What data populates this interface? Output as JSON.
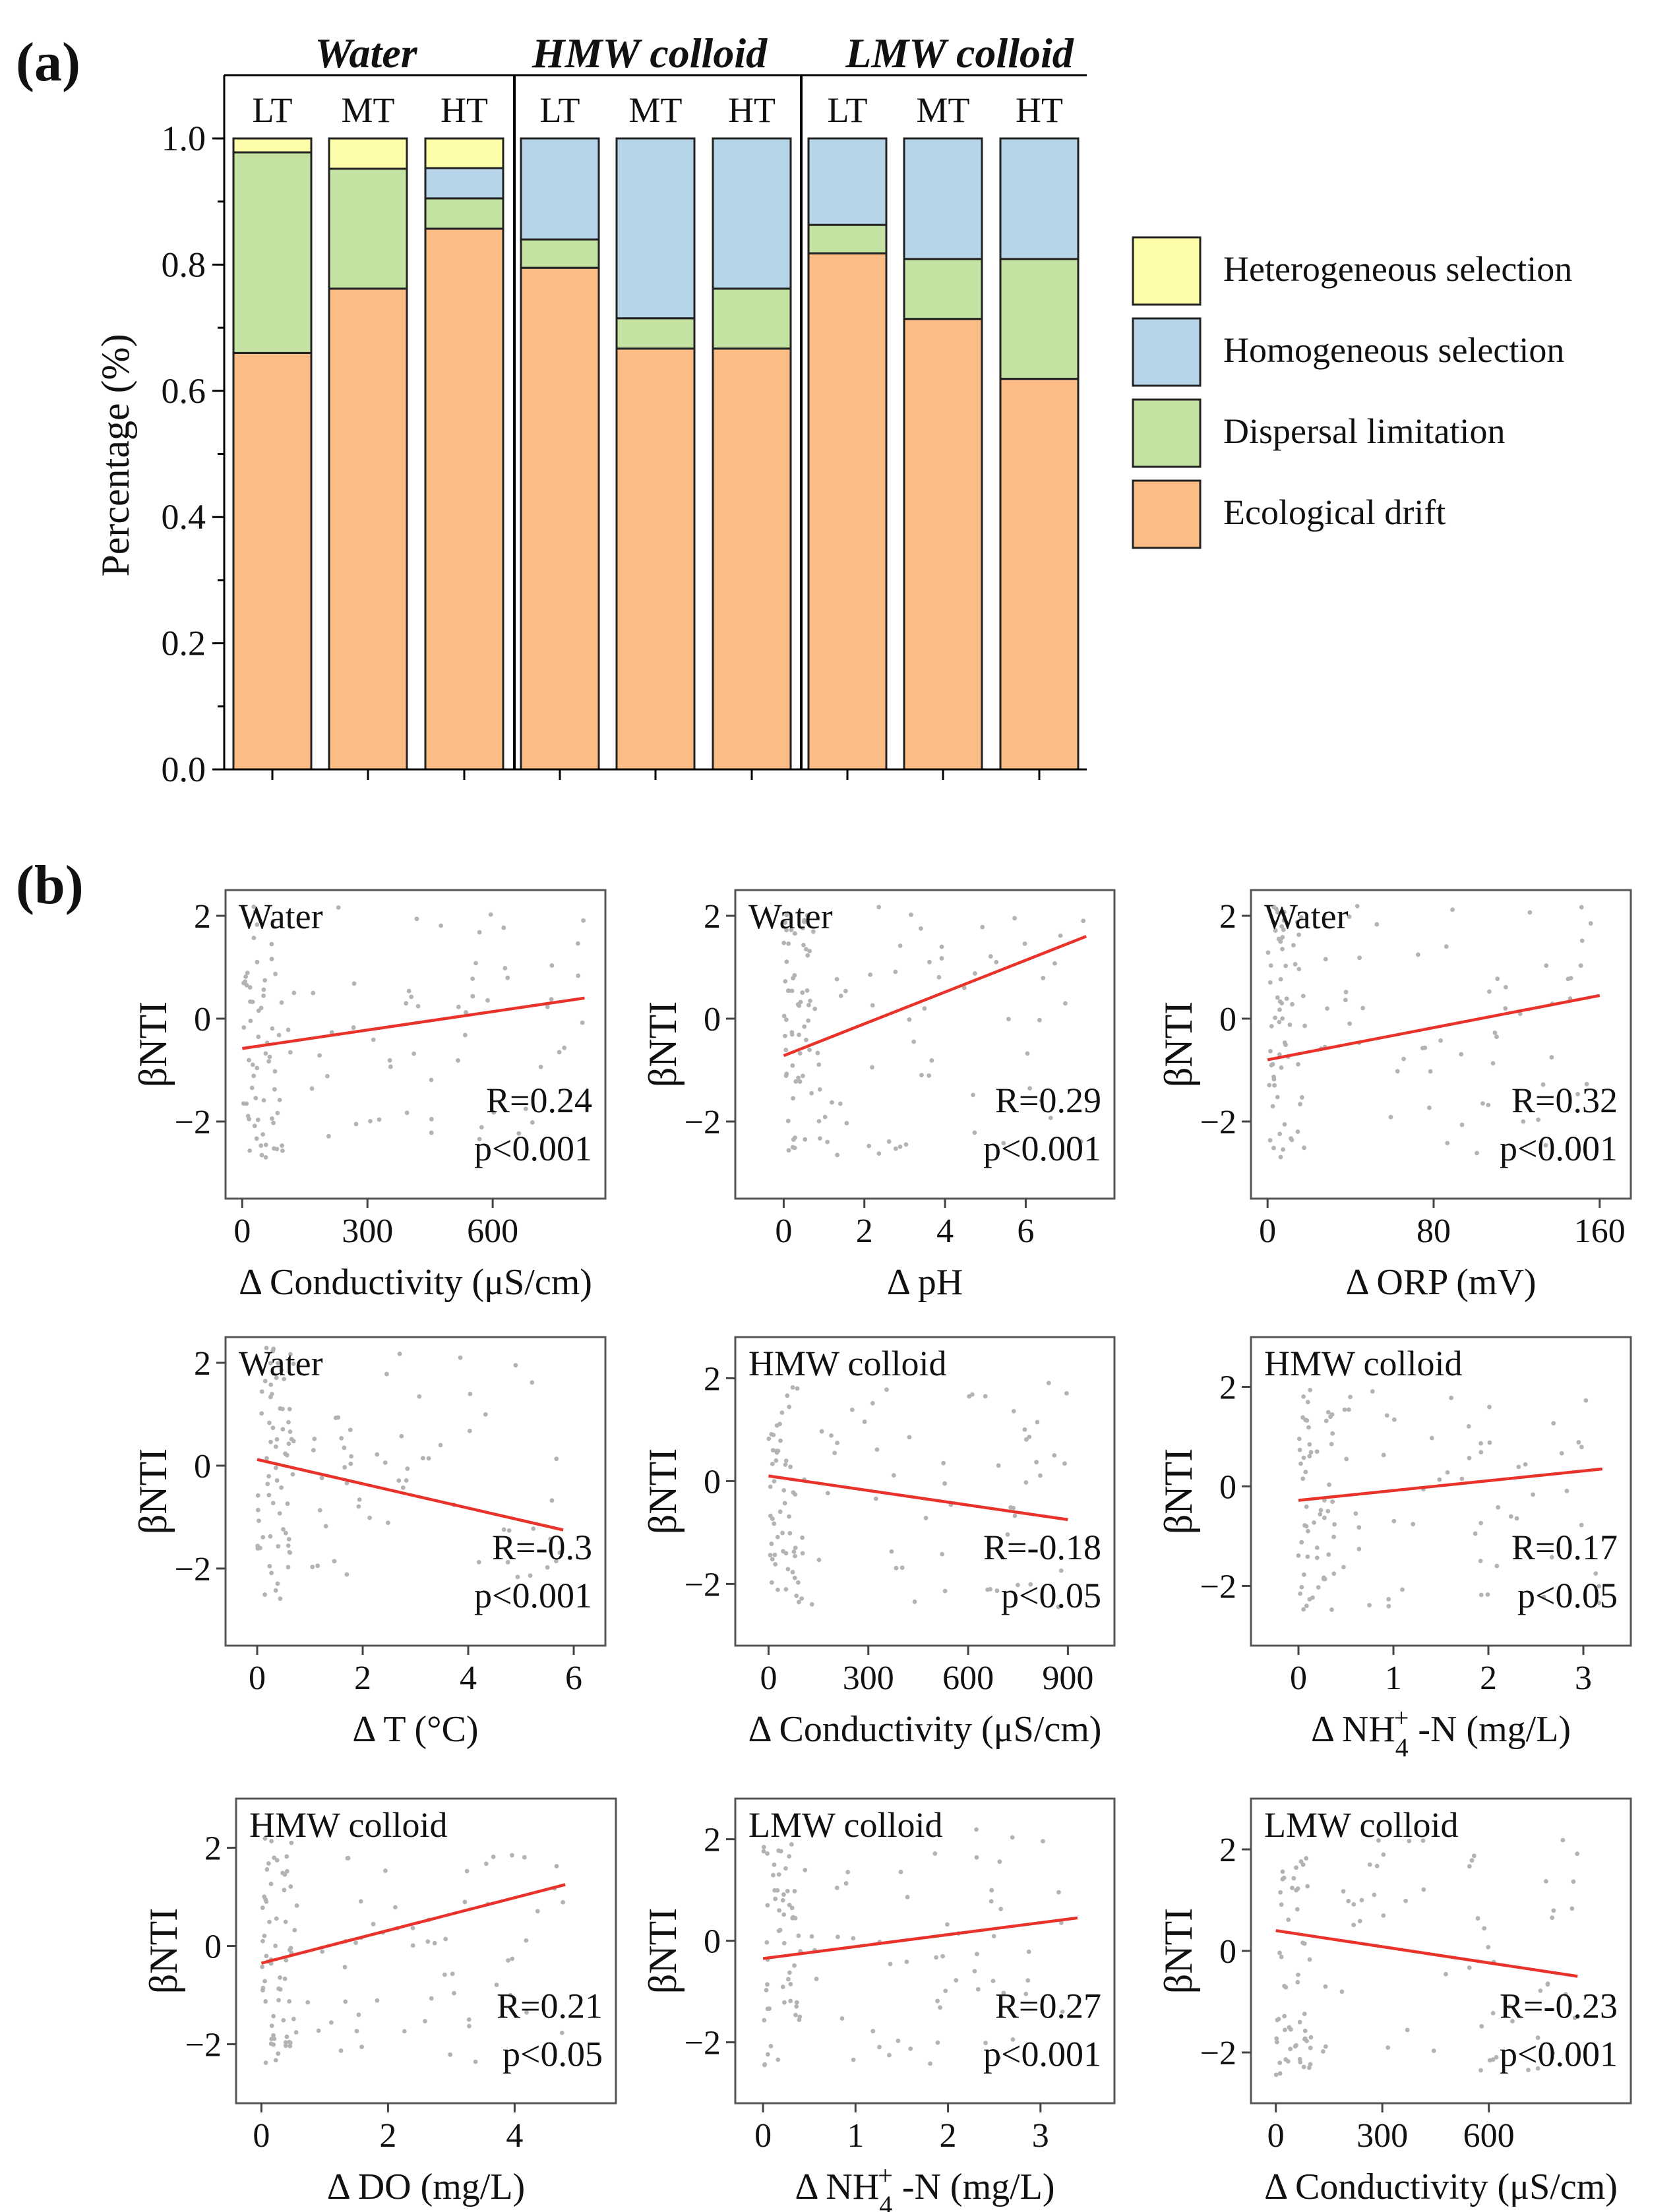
{
  "panel_labels": {
    "a": "(a)",
    "b": "(b)"
  },
  "chart_data": [
    {
      "type": "bar",
      "stacked": true,
      "groups": [
        "Water",
        "HMW colloid",
        "LMW colloid"
      ],
      "categories": [
        "LT",
        "MT",
        "HT",
        "LT",
        "MT",
        "HT",
        "LT",
        "MT",
        "HT"
      ],
      "ylabel": "Percentage (%)",
      "ylim": [
        0,
        1.0
      ],
      "yticks": [
        "0.0",
        "0.2",
        "0.4",
        "0.6",
        "0.8",
        "1.0"
      ],
      "legend_position": "right",
      "series": [
        {
          "name": "Ecological drift",
          "color": "#FBBD85",
          "values": [
            0.66,
            0.762,
            0.857,
            0.795,
            0.667,
            0.667,
            0.818,
            0.714,
            0.619
          ]
        },
        {
          "name": "Dispersal limitation",
          "color": "#C4E3A3",
          "values": [
            0.318,
            0.19,
            0.048,
            0.045,
            0.048,
            0.095,
            0.045,
            0.095,
            0.19
          ]
        },
        {
          "name": "Homogeneous selection",
          "color": "#B6D5E8",
          "values": [
            0,
            0,
            0.048,
            0.16,
            0.285,
            0.238,
            0.137,
            0.191,
            0.191
          ]
        },
        {
          "name": "Heterogeneous selection",
          "color": "#FDFDAA",
          "values": [
            0.022,
            0.048,
            0.047,
            0,
            0,
            0,
            0,
            0,
            0
          ]
        }
      ]
    },
    {
      "type": "scatter",
      "panels": [
        {
          "label": "Water",
          "xlabel": "Δ Conductivity (μS/cm)",
          "ylabel": "βNTI",
          "xlim": [
            -40,
            870
          ],
          "ylim": [
            -3.5,
            2.5
          ],
          "xticks": [
            0,
            300,
            600
          ],
          "yticks": [
            -2,
            0,
            2
          ],
          "fit": [
            [
              0,
              -0.58
            ],
            [
              820,
              0.4
            ]
          ],
          "R": "R=0.24",
          "p": "p<0.001",
          "scatter_x": [
            0,
            820
          ],
          "scatter_y": [
            -2.7,
            2.2
          ],
          "n": 120,
          "seed": 11
        },
        {
          "label": "Water",
          "xlabel": "Δ pH",
          "ylabel": "βNTI",
          "xlim": [
            -1.2,
            8.2
          ],
          "ylim": [
            -3.5,
            2.5
          ],
          "xticks": [
            0,
            2,
            4,
            6
          ],
          "yticks": [
            -2,
            0,
            2
          ],
          "fit": [
            [
              0,
              -0.72
            ],
            [
              7.5,
              1.6
            ]
          ],
          "R": "R=0.29",
          "p": "p<0.001",
          "scatter_x": [
            0,
            7.5
          ],
          "scatter_y": [
            -2.7,
            2.2
          ],
          "n": 120,
          "seed": 23
        },
        {
          "label": "Water",
          "xlabel": "Δ ORP (mV)",
          "ylabel": "βNTI",
          "xlim": [
            -8,
            175
          ],
          "ylim": [
            -3.5,
            2.5
          ],
          "xticks": [
            0,
            80,
            160
          ],
          "yticks": [
            -2,
            0,
            2
          ],
          "fit": [
            [
              0,
              -0.8
            ],
            [
              160,
              0.45
            ]
          ],
          "R": "R=0.32",
          "p": "p<0.001",
          "scatter_x": [
            0,
            160
          ],
          "scatter_y": [
            -2.7,
            2.2
          ],
          "n": 120,
          "seed": 37
        },
        {
          "label": "Water",
          "xlabel": "Δ T (°C)",
          "ylabel": "βNTI",
          "xlim": [
            -0.6,
            6.6
          ],
          "ylim": [
            -3.5,
            2.5
          ],
          "xticks": [
            0,
            2,
            4,
            6
          ],
          "yticks": [
            -2,
            0,
            2
          ],
          "fit": [
            [
              0,
              0.12
            ],
            [
              5.8,
              -1.25
            ]
          ],
          "R": "R=-0.3",
          "p": "p<0.001",
          "scatter_x": [
            0,
            5.8
          ],
          "scatter_y": [
            -2.6,
            2.3
          ],
          "n": 120,
          "seed": 41
        },
        {
          "label": "HMW colloid",
          "xlabel": "Δ Conductivity (μS/cm)",
          "ylabel": "βNTI",
          "xlim": [
            -100,
            1040
          ],
          "ylim": [
            -3.2,
            2.8
          ],
          "xticks": [
            0,
            300,
            600,
            900
          ],
          "yticks": [
            -2,
            0,
            2
          ],
          "fit": [
            [
              0,
              0.1
            ],
            [
              900,
              -0.75
            ]
          ],
          "R": "R=-0.18",
          "p": "p<0.05",
          "scatter_x": [
            0,
            900
          ],
          "scatter_y": [
            -2.5,
            2.0
          ],
          "n": 110,
          "seed": 53
        },
        {
          "label": "HMW colloid",
          "xlabel": "Δ NH4+ -N (mg/L)",
          "ylabel": "βNTI",
          "xlim": [
            -0.5,
            3.5
          ],
          "ylim": [
            -3.2,
            3.0
          ],
          "xticks": [
            0,
            1,
            2,
            3
          ],
          "yticks": [
            -2,
            0,
            2
          ],
          "fit": [
            [
              0,
              -0.28
            ],
            [
              3.2,
              0.35
            ]
          ],
          "R": "R=0.17",
          "p": "p<0.05",
          "scatter_x": [
            0,
            3.2
          ],
          "scatter_y": [
            -2.5,
            2.0
          ],
          "n": 110,
          "seed": 67
        },
        {
          "label": "HMW colloid",
          "xlabel": "Δ  DO (mg/L)",
          "ylabel": "βNTI",
          "xlim": [
            -0.4,
            5.6
          ],
          "ylim": [
            -3.2,
            3.0
          ],
          "xticks": [
            0,
            2,
            4
          ],
          "yticks": [
            -2,
            0,
            2
          ],
          "fit": [
            [
              0,
              -0.35
            ],
            [
              4.8,
              1.25
            ]
          ],
          "R": "R=0.21",
          "p": "p<0.05",
          "scatter_x": [
            0,
            4.8
          ],
          "scatter_y": [
            -2.4,
            2.2
          ],
          "n": 120,
          "seed": 79
        },
        {
          "label": "LMW colloid",
          "xlabel": "Δ NH4+ -N (mg/L)",
          "ylabel": "βNTI",
          "xlim": [
            -0.3,
            3.8
          ],
          "ylim": [
            -3.2,
            2.8
          ],
          "xticks": [
            0,
            1,
            2,
            3
          ],
          "yticks": [
            -2,
            0,
            2
          ],
          "fit": [
            [
              0,
              -0.35
            ],
            [
              3.4,
              0.45
            ]
          ],
          "R": "R=0.27",
          "p": "p<0.001",
          "scatter_x": [
            0,
            3.4
          ],
          "scatter_y": [
            -2.5,
            2.2
          ],
          "n": 110,
          "seed": 83
        },
        {
          "label": "LMW colloid",
          "xlabel": "Δ Conductivity (μS/cm)",
          "ylabel": "βNTI",
          "xlim": [
            -70,
            1000
          ],
          "ylim": [
            -3.0,
            3.0
          ],
          "xticks": [
            0,
            300,
            600
          ],
          "yticks": [
            -2,
            0,
            2
          ],
          "fit": [
            [
              0,
              0.4
            ],
            [
              850,
              -0.5
            ]
          ],
          "R": "R=-0.23",
          "p": "p<0.001",
          "scatter_x": [
            0,
            850
          ],
          "scatter_y": [
            -2.5,
            2.2
          ],
          "n": 110,
          "seed": 97
        }
      ]
    }
  ]
}
